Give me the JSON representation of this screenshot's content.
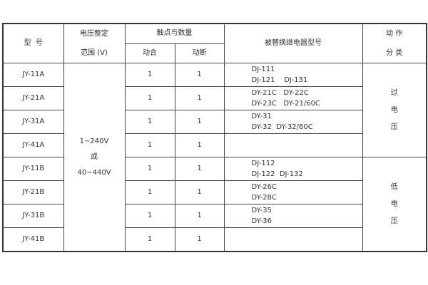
{
  "header": {
    "model": "型  号",
    "voltage_line1": "电压整定",
    "voltage_line2": "范围 (V)",
    "contacts": "触点与数量",
    "make": "动合",
    "break": "动断",
    "replaced": "被替换继电器型号",
    "action_line1": "动 作",
    "action_line2": "分 类"
  },
  "voltage_range": {
    "line1": "1~240V",
    "line2": "或",
    "line3": "40~440V"
  },
  "categories": {
    "over": [
      "过",
      "电",
      "压"
    ],
    "under": [
      "低",
      "电",
      "压"
    ]
  },
  "rows": [
    {
      "model": "JY-11A",
      "make": "1",
      "break": "1",
      "replaced": [
        "DJ-111",
        "DJ-121    DJ-131"
      ]
    },
    {
      "model": "JY-21A",
      "make": "1",
      "break": "1",
      "replaced": [
        "DY-21C   DY-22C",
        "DY-23C   DY-21/60C"
      ]
    },
    {
      "model": "JY-31A",
      "make": "1",
      "break": "1",
      "replaced": [
        "DY-31",
        "DY-32  DY-32/60C"
      ]
    },
    {
      "model": "JY-41A",
      "make": "1",
      "break": "1",
      "replaced": [
        "",
        ""
      ]
    },
    {
      "model": "JY-11B",
      "make": "1",
      "break": "1",
      "replaced": [
        "DJ-112",
        "DJ-122  DJ-132"
      ]
    },
    {
      "model": "JY-21B",
      "make": "1",
      "break": "1",
      "replaced": [
        "DY-26C",
        "DY-28C"
      ]
    },
    {
      "model": "JY-31B",
      "make": "1",
      "break": "1",
      "replaced": [
        "DY-35",
        "DY-36"
      ]
    },
    {
      "model": "JY-41B",
      "make": "1",
      "break": "1",
      "replaced": [
        "",
        ""
      ]
    }
  ]
}
